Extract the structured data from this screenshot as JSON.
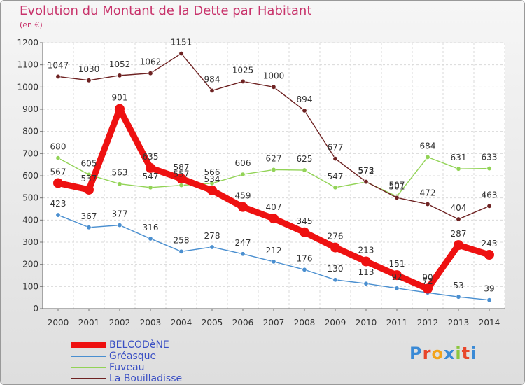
{
  "title": "Evolution du Montant de la Dette par Habitant",
  "subtitle": "(en €)",
  "brand": {
    "name": "Proxiti",
    "letters": [
      "P",
      "r",
      "o",
      "x",
      "i",
      "t",
      "i"
    ],
    "letter_colors": [
      "#3a8ad6",
      "#e8462b",
      "#f2a31b",
      "#3a8ad6",
      "#8cc63e",
      "#e8462b",
      "#3a8ad6"
    ]
  },
  "chart_data": {
    "type": "line",
    "title": "Evolution du Montant de la Dette par Habitant",
    "subtitle": "(en €)",
    "xlabel": "",
    "ylabel": "",
    "ylim": [
      0,
      1200
    ],
    "yticks": [
      0,
      100,
      200,
      300,
      400,
      500,
      600,
      700,
      800,
      900,
      1000,
      1100,
      1200
    ],
    "x": [
      "2000",
      "2001",
      "2002",
      "2003",
      "2004",
      "2005",
      "2006",
      "2007",
      "2008",
      "2009",
      "2010",
      "2011",
      "2012",
      "2013",
      "2014"
    ],
    "grid": true,
    "legend_position": "bottom-left",
    "series": [
      {
        "name": "BELCODèNE",
        "color": "#ee1111",
        "emphasis": true,
        "values": [
          567,
          537,
          901,
          635,
          587,
          534,
          459,
          407,
          345,
          276,
          213,
          151,
          90,
          287,
          243
        ]
      },
      {
        "name": "Gréasque",
        "color": "#4a8fd0",
        "values": [
          423,
          367,
          377,
          316,
          258,
          278,
          247,
          212,
          176,
          130,
          113,
          92,
          72,
          53,
          39
        ]
      },
      {
        "name": "Fuveau",
        "color": "#92d356",
        "values": [
          680,
          605,
          563,
          547,
          557,
          566,
          606,
          627,
          625,
          547,
          572,
          507,
          684,
          631,
          633
        ]
      },
      {
        "name": "La Bouilladisse",
        "color": "#6e2222",
        "values": [
          1047,
          1030,
          1052,
          1062,
          1151,
          984,
          1025,
          1000,
          894,
          677,
          573,
          501,
          472,
          404,
          463
        ]
      }
    ]
  }
}
